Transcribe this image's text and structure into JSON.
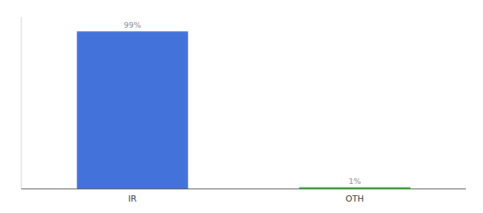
{
  "chart_data": {
    "type": "bar",
    "categories": [
      "IR",
      "OTH"
    ],
    "values": [
      99,
      1
    ],
    "value_labels": [
      "99%",
      "1%"
    ],
    "colors": [
      "#4472db",
      "#22bb22"
    ],
    "ylim": [
      0,
      108
    ],
    "data_labels": true,
    "tick_labels": "x",
    "grid": false
  }
}
